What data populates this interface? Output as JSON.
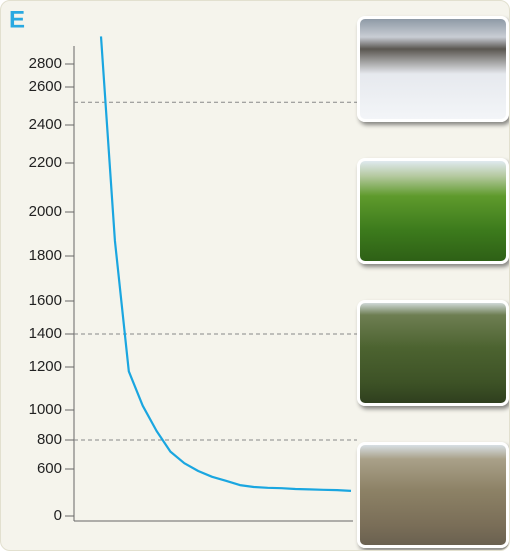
{
  "chart_data": {
    "type": "line",
    "title": "E",
    "categories": [
      null,
      null,
      null,
      null,
      null,
      null,
      null,
      null,
      null,
      null,
      null,
      null,
      null,
      null,
      null,
      null,
      null,
      null,
      null
    ],
    "series": [
      {
        "color": "#1aa6e0",
        "values": [
          3040,
          1870,
          1180,
          1020,
          860,
          720,
          640,
          575,
          500,
          450,
          395,
          370,
          360,
          355,
          345,
          340,
          335,
          330,
          320
        ]
      }
    ],
    "yticks": [
      0,
      600,
      800,
      1000,
      1200,
      1400,
      1600,
      1800,
      2000,
      2200,
      2400,
      2600,
      2800
    ],
    "reference_lines": [
      2520,
      1400,
      800
    ]
  }
}
